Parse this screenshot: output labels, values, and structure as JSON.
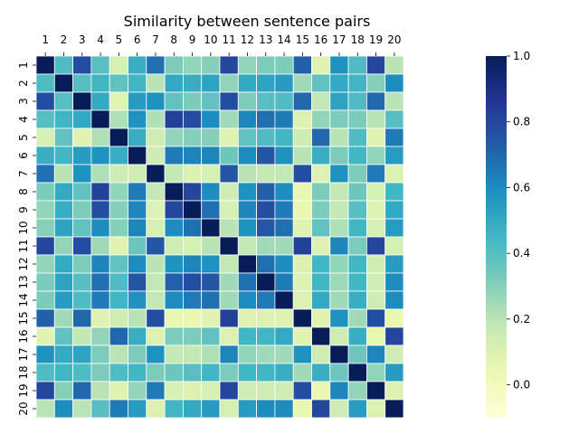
{
  "chart_data": {
    "type": "heatmap",
    "title": "Similarity between sentence pairs",
    "xlabel": "",
    "ylabel": "",
    "x_tick_labels": [
      "1",
      "2",
      "3",
      "4",
      "5",
      "6",
      "7",
      "8",
      "9",
      "10",
      "11",
      "12",
      "13",
      "14",
      "15",
      "16",
      "17",
      "18",
      "19",
      "20"
    ],
    "y_tick_labels": [
      "1",
      "2",
      "3",
      "4",
      "5",
      "6",
      "7",
      "8",
      "9",
      "10",
      "11",
      "12",
      "13",
      "14",
      "15",
      "16",
      "17",
      "18",
      "19",
      "20"
    ],
    "x_axis_position": "top",
    "colormap": "YlGnBu",
    "color_range": [
      -0.1,
      1.0
    ],
    "colorbar": {
      "position": "right",
      "tick_labels": [
        "1.0",
        "0.8",
        "0.6",
        "0.4",
        "0.2",
        "0.0"
      ],
      "tick_values": [
        1.0,
        0.8,
        0.6,
        0.4,
        0.2,
        0.0
      ]
    },
    "cell_border_color": "#ffffff",
    "values": [
      [
        1.0,
        0.42,
        0.78,
        0.4,
        0.12,
        0.48,
        0.68,
        0.32,
        0.28,
        0.3,
        0.8,
        0.28,
        0.32,
        0.32,
        0.72,
        0.08,
        0.58,
        0.42,
        0.8,
        0.2
      ],
      [
        0.42,
        1.0,
        0.4,
        0.45,
        0.38,
        0.45,
        0.2,
        0.5,
        0.48,
        0.52,
        0.28,
        0.5,
        0.52,
        0.55,
        0.25,
        0.38,
        0.5,
        0.45,
        0.3,
        0.6
      ],
      [
        0.78,
        0.4,
        1.0,
        0.5,
        0.08,
        0.55,
        0.58,
        0.38,
        0.32,
        0.38,
        0.78,
        0.32,
        0.4,
        0.42,
        0.7,
        0.18,
        0.52,
        0.42,
        0.7,
        0.2
      ],
      [
        0.4,
        0.45,
        0.5,
        1.0,
        0.22,
        0.58,
        0.22,
        0.82,
        0.78,
        0.6,
        0.25,
        0.62,
        0.68,
        0.65,
        0.1,
        0.28,
        0.32,
        0.32,
        0.2,
        0.4
      ],
      [
        0.12,
        0.38,
        0.08,
        0.22,
        1.0,
        0.48,
        0.15,
        0.28,
        0.3,
        0.3,
        0.08,
        0.38,
        0.42,
        0.45,
        0.15,
        0.7,
        0.2,
        0.42,
        0.08,
        0.65
      ],
      [
        0.48,
        0.45,
        0.55,
        0.58,
        0.48,
        1.0,
        0.15,
        0.65,
        0.62,
        0.62,
        0.35,
        0.6,
        0.75,
        0.58,
        0.2,
        0.48,
        0.32,
        0.45,
        0.28,
        0.55
      ],
      [
        0.68,
        0.2,
        0.58,
        0.22,
        0.15,
        0.15,
        1.0,
        0.18,
        0.1,
        0.12,
        0.75,
        0.2,
        0.18,
        0.18,
        0.78,
        0.1,
        0.58,
        0.32,
        0.65,
        0.1
      ],
      [
        0.32,
        0.5,
        0.38,
        0.82,
        0.28,
        0.65,
        0.18,
        1.0,
        0.8,
        0.6,
        0.15,
        0.58,
        0.72,
        0.6,
        0.05,
        0.32,
        0.18,
        0.35,
        0.12,
        0.45
      ],
      [
        0.28,
        0.48,
        0.32,
        0.78,
        0.3,
        0.62,
        0.1,
        0.8,
        1.0,
        0.68,
        0.12,
        0.62,
        0.78,
        0.65,
        0.05,
        0.32,
        0.18,
        0.4,
        0.1,
        0.5
      ],
      [
        0.3,
        0.52,
        0.38,
        0.6,
        0.3,
        0.62,
        0.12,
        0.6,
        0.68,
        1.0,
        0.2,
        0.58,
        0.75,
        0.68,
        0.08,
        0.38,
        0.22,
        0.45,
        0.12,
        0.55
      ],
      [
        0.8,
        0.28,
        0.78,
        0.25,
        0.08,
        0.35,
        0.75,
        0.15,
        0.12,
        0.2,
        1.0,
        0.18,
        0.25,
        0.25,
        0.82,
        0.1,
        0.62,
        0.32,
        0.8,
        0.12
      ],
      [
        0.28,
        0.5,
        0.32,
        0.62,
        0.38,
        0.6,
        0.2,
        0.58,
        0.62,
        0.58,
        0.18,
        1.0,
        0.68,
        0.6,
        0.1,
        0.45,
        0.28,
        0.45,
        0.15,
        0.55
      ],
      [
        0.32,
        0.52,
        0.4,
        0.68,
        0.42,
        0.75,
        0.18,
        0.72,
        0.78,
        0.75,
        0.25,
        0.68,
        1.0,
        0.65,
        0.1,
        0.45,
        0.25,
        0.45,
        0.15,
        0.6
      ],
      [
        0.32,
        0.55,
        0.42,
        0.65,
        0.45,
        0.58,
        0.18,
        0.6,
        0.65,
        0.68,
        0.25,
        0.6,
        0.65,
        1.0,
        0.1,
        0.5,
        0.25,
        0.48,
        0.15,
        0.6
      ],
      [
        0.72,
        0.25,
        0.7,
        0.1,
        0.15,
        0.2,
        0.78,
        0.05,
        0.05,
        0.08,
        0.82,
        0.1,
        0.1,
        0.1,
        1.0,
        0.08,
        0.58,
        0.25,
        0.78,
        0.05
      ],
      [
        0.08,
        0.38,
        0.18,
        0.28,
        0.7,
        0.48,
        0.1,
        0.32,
        0.32,
        0.38,
        0.1,
        0.45,
        0.45,
        0.5,
        0.08,
        1.0,
        0.15,
        0.48,
        0.05,
        0.8
      ],
      [
        0.58,
        0.5,
        0.52,
        0.32,
        0.2,
        0.32,
        0.58,
        0.18,
        0.18,
        0.22,
        0.62,
        0.28,
        0.25,
        0.25,
        0.58,
        0.15,
        1.0,
        0.35,
        0.62,
        0.15
      ],
      [
        0.42,
        0.45,
        0.42,
        0.32,
        0.42,
        0.45,
        0.32,
        0.35,
        0.4,
        0.45,
        0.32,
        0.45,
        0.45,
        0.48,
        0.25,
        0.48,
        0.35,
        1.0,
        0.28,
        0.55
      ],
      [
        0.8,
        0.3,
        0.7,
        0.2,
        0.08,
        0.28,
        0.65,
        0.12,
        0.1,
        0.12,
        0.8,
        0.15,
        0.15,
        0.15,
        0.78,
        0.05,
        0.62,
        0.28,
        1.0,
        0.1
      ],
      [
        0.2,
        0.6,
        0.2,
        0.4,
        0.65,
        0.55,
        0.1,
        0.45,
        0.5,
        0.55,
        0.12,
        0.55,
        0.6,
        0.6,
        0.05,
        0.8,
        0.15,
        0.55,
        0.1,
        1.0
      ]
    ]
  }
}
